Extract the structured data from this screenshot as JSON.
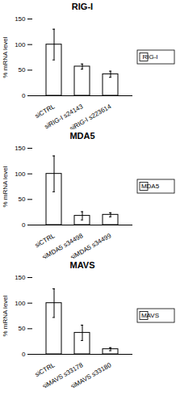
{
  "chart_data": [
    {
      "type": "bar",
      "title": "RIG-I",
      "ylabel": "% mRNA level",
      "categories": [
        "siCTRL",
        "siRIG-I s24143",
        "siRIG-I s223614"
      ],
      "series": [
        {
          "name": "RIG-I",
          "color": "white",
          "values": [
            100,
            57,
            42
          ],
          "errors": [
            30,
            5,
            6
          ]
        }
      ],
      "ylim": [
        0,
        150
      ],
      "yticks": [
        0,
        50,
        100,
        150
      ],
      "legend": "right"
    },
    {
      "type": "bar",
      "title": "MDA5",
      "ylabel": "% mRNA level",
      "categories": [
        "siCTRL",
        "siMDA5 s34498",
        "siMDA5 s34499"
      ],
      "series": [
        {
          "name": "MDA5",
          "color": "white",
          "values": [
            100,
            18,
            20
          ],
          "errors": [
            35,
            8,
            4
          ]
        }
      ],
      "ylim": [
        0,
        150
      ],
      "yticks": [
        0,
        50,
        100,
        150
      ],
      "legend": "right"
    },
    {
      "type": "bar",
      "title": "MAVS",
      "ylabel": "% mRNA level",
      "categories": [
        "siCTRL",
        "siMAVS s33178",
        "siMAVS s33180"
      ],
      "series": [
        {
          "name": "MAVS",
          "color": "white",
          "values": [
            100,
            42,
            10
          ],
          "errors": [
            28,
            15,
            3
          ]
        }
      ],
      "ylim": [
        0,
        150
      ],
      "yticks": [
        0,
        50,
        100,
        150
      ],
      "legend": "right"
    }
  ]
}
